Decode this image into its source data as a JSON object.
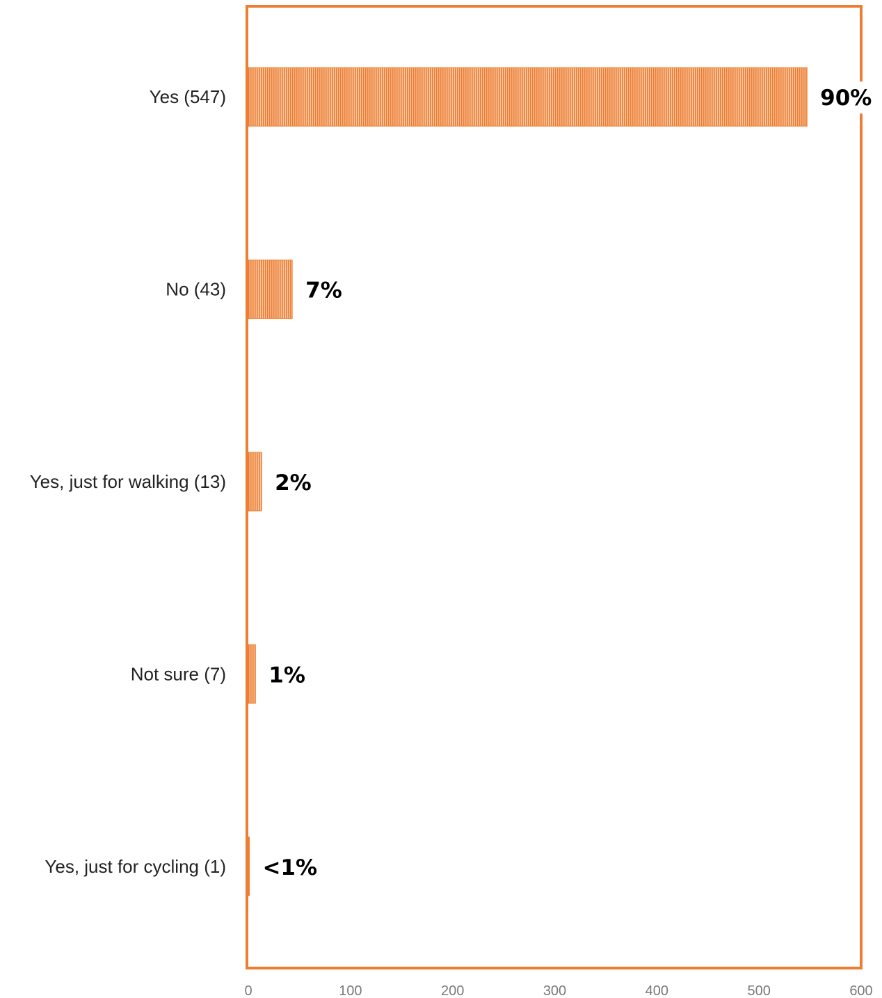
{
  "chart_data": {
    "type": "bar",
    "orientation": "horizontal",
    "categories": [
      "Yes (547)",
      "No (43)",
      "Yes, just for walking (13)",
      "Not sure (7)",
      "Yes, just for cycling (1)"
    ],
    "values": [
      547,
      43,
      13,
      7,
      1
    ],
    "data_labels": [
      "90%",
      "7%",
      "2%",
      "1%",
      "<1%"
    ],
    "xlim": [
      0,
      600
    ],
    "xticks": [
      0,
      100,
      200,
      300,
      400,
      500,
      600
    ],
    "title": "",
    "xlabel": "",
    "ylabel": "",
    "grid": false,
    "legend": "none",
    "bar_color": "#ED7D31",
    "bar_fill": "vertical-stripes"
  }
}
